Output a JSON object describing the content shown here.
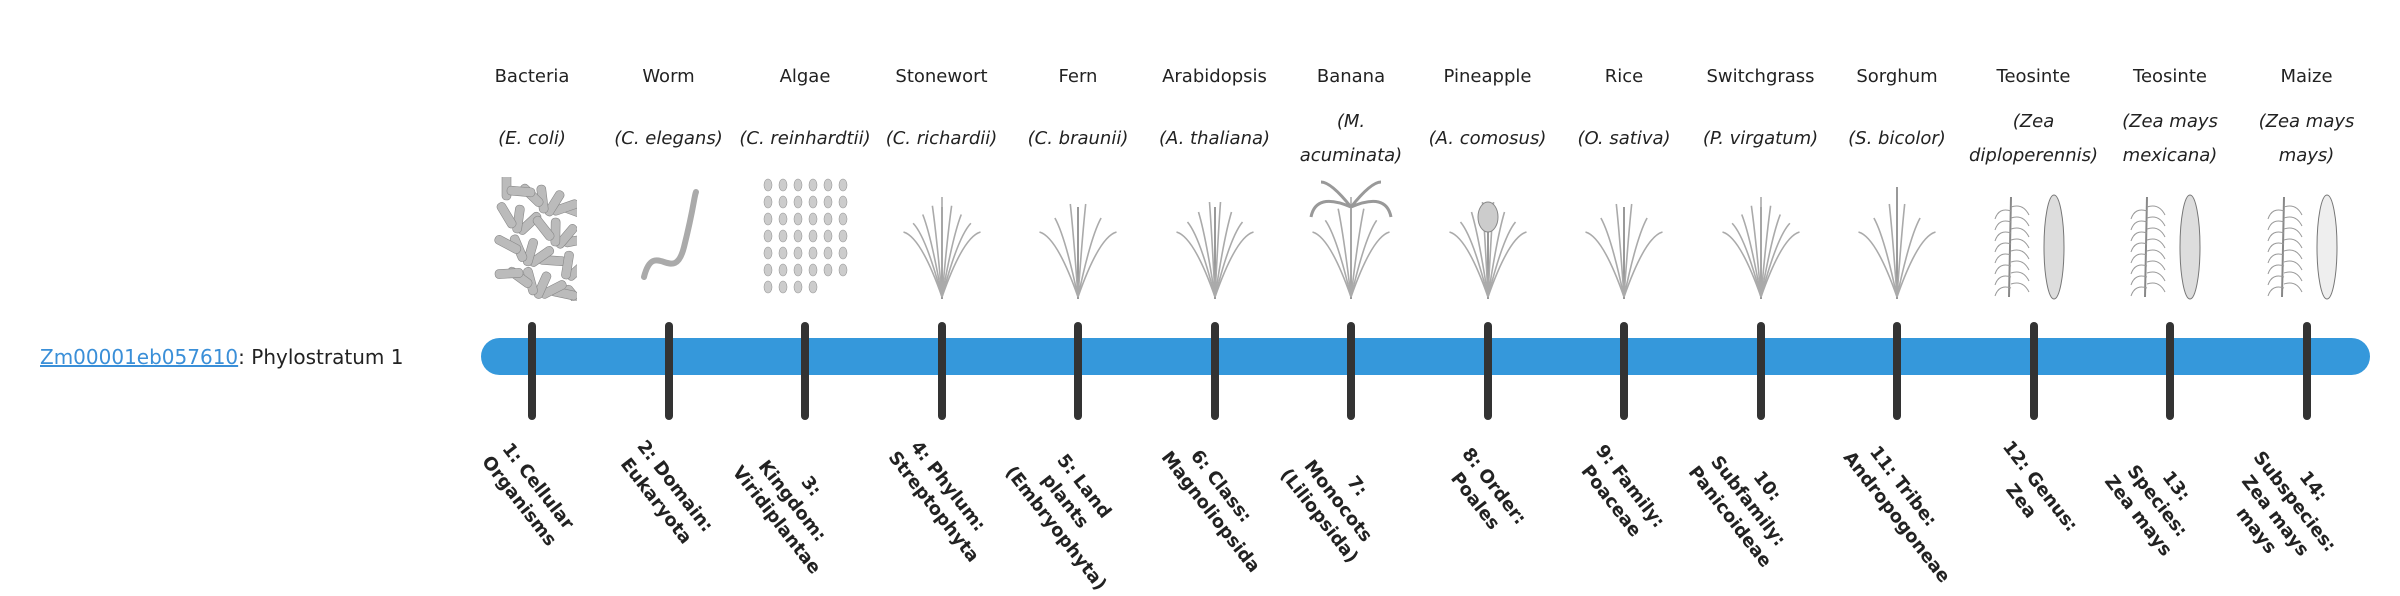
{
  "gene": {
    "id": "Zm00001eb057610",
    "suffix": ": Phylostratum 1"
  },
  "colors": {
    "bar": "#3598db",
    "tick": "#333333",
    "link": "#3a8fd8"
  },
  "strata": [
    {
      "common": "Bacteria",
      "scientific": "(E. coli)",
      "rank": "1: Cellular Organisms",
      "icon": "bacteria-image"
    },
    {
      "common": "Worm",
      "scientific": "(C. elegans)",
      "rank": "2: Domain: Eukaryota",
      "icon": "worm-image"
    },
    {
      "common": "Algae",
      "scientific": "(C. reinhardtii)",
      "rank": "3: Kingdom: Viridiplantae",
      "icon": "algae-image"
    },
    {
      "common": "Stonewort",
      "scientific": "(C. richardii)",
      "rank": "4: Phylum: Streptophyta",
      "icon": "stonewort-image"
    },
    {
      "common": "Fern",
      "scientific": "(C. braunii)",
      "rank": "5: Land plants (Embryophyta)",
      "icon": "fern-image"
    },
    {
      "common": "Arabidopsis",
      "scientific": "(A. thaliana)",
      "rank": "6: Class: Magnoliopsida",
      "icon": "arabidopsis-image"
    },
    {
      "common": "Banana",
      "scientific": "(M. acuminata)",
      "rank": "7: Monocots (Liliopsida)",
      "icon": "banana-image"
    },
    {
      "common": "Pineapple",
      "scientific": "(A. comosus)",
      "rank": "8: Order: Poales",
      "icon": "pineapple-image"
    },
    {
      "common": "Rice",
      "scientific": "(O. sativa)",
      "rank": "9: Family: Poaceae",
      "icon": "rice-image"
    },
    {
      "common": "Switchgrass",
      "scientific": "(P. virgatum)",
      "rank": "10: Subfamily: Panicoideae",
      "icon": "switchgrass-image"
    },
    {
      "common": "Sorghum",
      "scientific": "(S. bicolor)",
      "rank": "11: Tribe: Andropogoneae",
      "icon": "sorghum-image"
    },
    {
      "common": "Teosinte",
      "scientific": "(Zea diploperennis)",
      "rank": "12: Genus: Zea",
      "icon": "teosinte-image"
    },
    {
      "common": "Teosinte",
      "scientific": "(Zea mays mexicana)",
      "rank": "13: Species: Zea mays",
      "icon": "teosinte-mexicana-image"
    },
    {
      "common": "Maize",
      "scientific": "(Zea mays mays)",
      "rank": "14: Subspecies: Zea mays mays",
      "icon": "maize-image"
    }
  ]
}
